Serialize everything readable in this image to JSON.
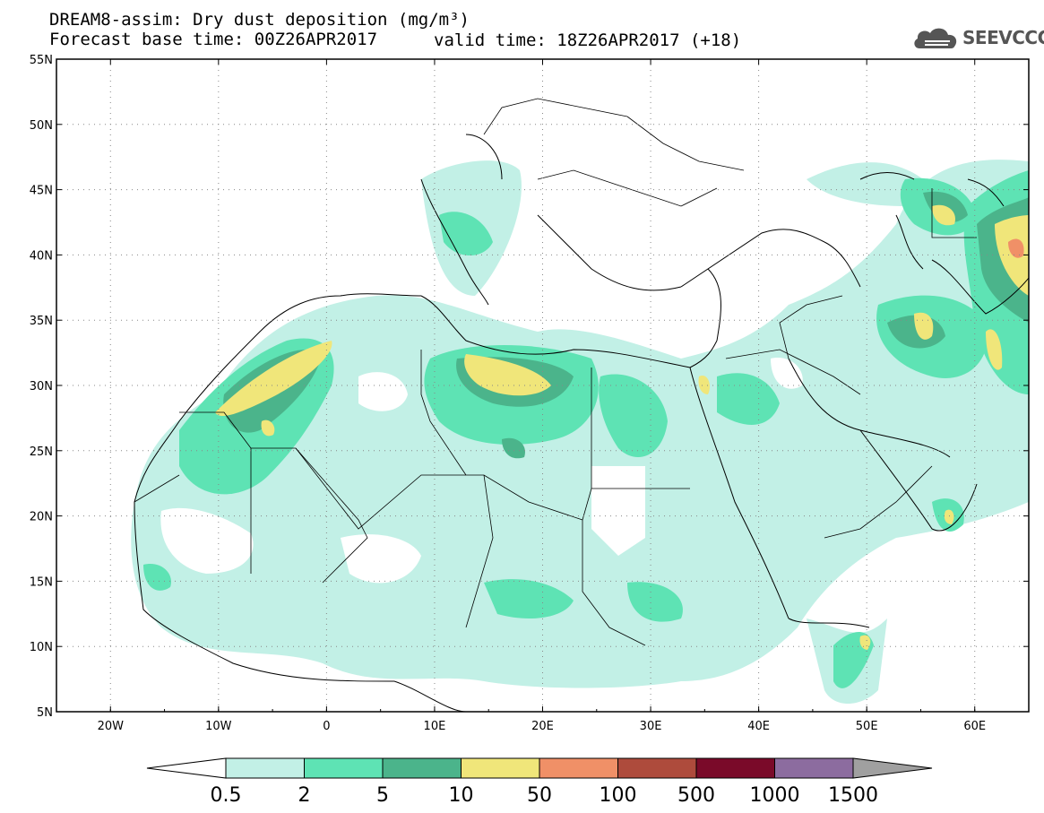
{
  "title": {
    "line1": "DREAM8-assim: Dry dust deposition (mg/m³)",
    "line2a": "Forecast base time: 00Z26APR2017",
    "line2b": "valid time: 18Z26APR2017 (+18)"
  },
  "logo": {
    "text": "SEEVCCC",
    "icon": "cloud-logo-icon"
  },
  "map": {
    "lon_range": [
      -25,
      65
    ],
    "lat_range": [
      5,
      55
    ],
    "lat_ticks": [
      "55N",
      "50N",
      "45N",
      "40N",
      "35N",
      "30N",
      "25N",
      "20N",
      "15N",
      "10N",
      "5N"
    ],
    "lon_ticks": [
      "20W",
      "10W",
      "0",
      "10E",
      "20E",
      "30E",
      "40E",
      "50E",
      "60E"
    ],
    "grid": "dotted"
  },
  "colorbar": {
    "labels": [
      "0.5",
      "2",
      "5",
      "10",
      "50",
      "100",
      "500",
      "1000",
      "1500"
    ],
    "colors": [
      "#c2f0e6",
      "#5ee3b4",
      "#4bb48b",
      "#f0e67a",
      "#f09067",
      "#ae4b3c",
      "#7a0a29",
      "#8c6c9f",
      "#a0a0a0"
    ]
  }
}
